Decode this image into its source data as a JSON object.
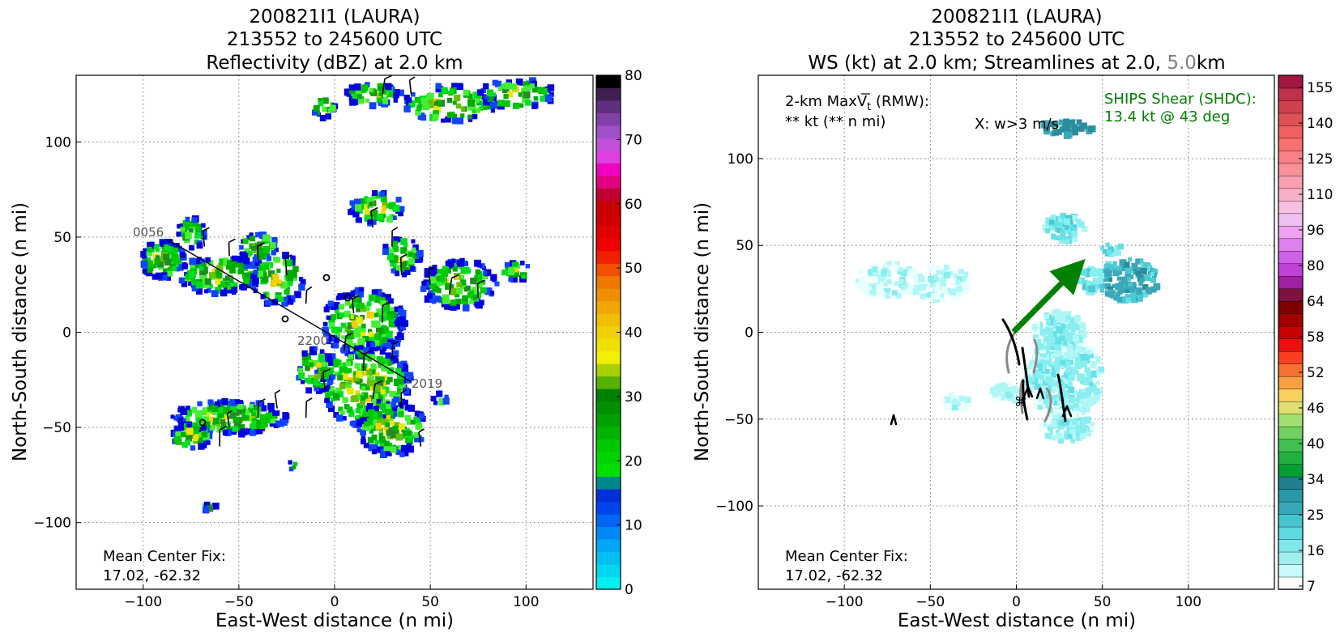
{
  "left_panel": {
    "title_lines": [
      "200821I1 (LAURA)",
      "213552 to 245600 UTC",
      "Reflectivity (dBZ) at 2.0 km"
    ],
    "xlabel": "East-West distance (n mi)",
    "ylabel": "North-South distance (n mi)",
    "xticks": [
      "−100",
      "−50",
      "0",
      "50",
      "100"
    ],
    "yticks": [
      "100",
      "50",
      "0",
      "−50",
      "−100"
    ],
    "colorbar_ticks": [
      "80",
      "70",
      "60",
      "50",
      "40",
      "30",
      "20",
      "10",
      "0"
    ],
    "annotation_line1": "Mean Center Fix:",
    "annotation_line2": "17.02, -62.32",
    "flight_labels": [
      "0056",
      "2200",
      "2019"
    ]
  },
  "right_panel": {
    "title_lines": [
      "200821I1 (LAURA)",
      "213552 to 245600 UTC"
    ],
    "title_line3_prefix": "WS (kt) at 2.0 km; Streamlines at 2.0, ",
    "title_line3_highlight": "5.0",
    "title_line3_suffix": "km",
    "xlabel": "East-West distance (n mi)",
    "ylabel": "North-South distance (n mi)",
    "xticks": [
      "−100",
      "−50",
      "0",
      "50",
      "100"
    ],
    "yticks": [
      "100",
      "50",
      "0",
      "−50",
      "−100"
    ],
    "colorbar_ticks": [
      "155",
      "140",
      "125",
      "110",
      "96",
      "80",
      "64",
      "58",
      "52",
      "46",
      "40",
      "34",
      "25",
      "16",
      "7"
    ],
    "maxvt_label": "2-km MaxV",
    "maxvt_sub": "t",
    "maxvt_suffix": " (RMW):",
    "maxvt_value": "** kt (** n mi)",
    "w_label": "X: w>3 m/s",
    "ships_label": "SHIPS Shear (SHDC):",
    "ships_value": "13.4 kt @ 43 deg",
    "annotation_line1": "Mean Center Fix:",
    "annotation_line2": "17.02, -62.32"
  },
  "colors": {
    "ships_green": "#008000",
    "highlight_gray": "#808080",
    "grid": "#777777"
  },
  "chart_data": [
    {
      "type": "heatmap",
      "title": "Reflectivity (dBZ) at 2.0 km",
      "xlabel": "East-West distance (n mi)",
      "ylabel": "North-South distance (n mi)",
      "xlim": [
        -135,
        135
      ],
      "ylim": [
        -135,
        135
      ],
      "grid": true,
      "colorbar": {
        "label_values": [
          0,
          10,
          20,
          30,
          40,
          50,
          60,
          70,
          80
        ],
        "range": [
          0,
          80
        ]
      },
      "flight_track": {
        "points": [
          [
            -100,
            50
          ],
          [
            40,
            -25
          ]
        ],
        "labels": [
          "0056",
          "2200",
          "2019"
        ]
      },
      "echo_regions": [
        {
          "x": -90,
          "y": 35,
          "dbz": 20
        },
        {
          "x": -55,
          "y": 30,
          "dbz": 15
        },
        {
          "x": 20,
          "y": 60,
          "dbz": 20
        },
        {
          "x": 65,
          "y": 20,
          "dbz": 25
        },
        {
          "x": 15,
          "y": -25,
          "dbz": 30
        },
        {
          "x": -55,
          "y": -50,
          "dbz": 20
        },
        {
          "x": 60,
          "y": 125,
          "dbz": 20
        },
        {
          "x": 0,
          "y": 120,
          "dbz": 20
        }
      ],
      "mean_center_fix": [
        17.02,
        -62.32
      ]
    },
    {
      "type": "heatmap",
      "title": "WS (kt) at 2.0 km; Streamlines at 2.0, 5.0km",
      "xlabel": "East-West distance (n mi)",
      "ylabel": "North-South distance (n mi)",
      "xlim": [
        -150,
        150
      ],
      "ylim": [
        -148,
        148
      ],
      "grid": true,
      "colorbar": {
        "label_values": [
          7,
          16,
          25,
          34,
          40,
          46,
          52,
          58,
          64,
          80,
          96,
          110,
          125,
          140,
          155
        ]
      },
      "shear_vector": {
        "speed_kt": 13.4,
        "direction_deg": 43,
        "from": [
          0,
          0
        ],
        "to": [
          40,
          40
        ]
      },
      "wind_regions": [
        {
          "x": -65,
          "y": 30,
          "kt": 10
        },
        {
          "x": 30,
          "y": 60,
          "kt": 15
        },
        {
          "x": 65,
          "y": 30,
          "kt": 22
        },
        {
          "x": 30,
          "y": 115,
          "kt": 22
        },
        {
          "x": 25,
          "y": -30,
          "kt": 12
        },
        {
          "x": -30,
          "y": -40,
          "kt": 10
        }
      ],
      "mean_center_fix": [
        17.02,
        -62.32
      ]
    }
  ]
}
